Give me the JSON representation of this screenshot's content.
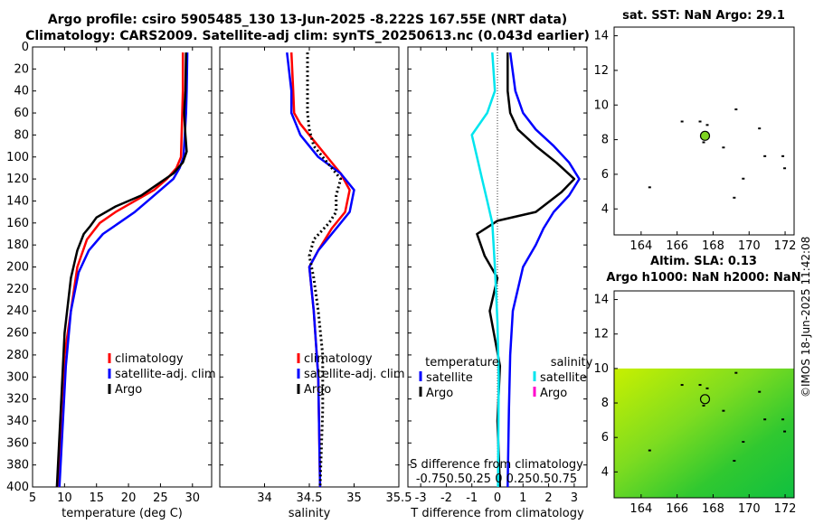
{
  "header": {
    "line1": "Argo profile: csiro 5905485_130 13-Jun-2025 -8.222S 167.55E (NRT data)",
    "line2": "Climatology: CARS2009. Satellite-adj clim: synTS_20250613.nc (0.043d earlier)"
  },
  "credit": "©IMOS 18-Jun-2025 11:42:08",
  "colors": {
    "clim": "#ff0000",
    "sat": "#0000ff",
    "argo": "#000000",
    "tsat": "#00e5ee",
    "sargo": "#ff00cc"
  },
  "chart_data": [
    {
      "type": "line",
      "id": "temperature",
      "xlabel": "temperature (deg C)",
      "xlim": [
        5,
        33
      ],
      "ylim": [
        0,
        400
      ],
      "xticks": [
        "5",
        "10",
        "15",
        "20",
        "25",
        "30"
      ],
      "xtick_values": [
        5,
        10,
        15,
        20,
        25,
        30
      ],
      "yticks": [
        "0",
        "20",
        "40",
        "60",
        "80",
        "100",
        "120",
        "140",
        "160",
        "180",
        "200",
        "220",
        "240",
        "260",
        "280",
        "300",
        "320",
        "340",
        "360",
        "380",
        "400"
      ],
      "legend": [
        "climatology",
        "satellite-adj. clim",
        "Argo"
      ],
      "series": [
        {
          "name": "climatology",
          "color": "clim",
          "x": [
            28.5,
            28.5,
            28.4,
            28.3,
            28.2,
            27.5,
            26,
            24,
            21,
            18,
            15.5,
            13.5,
            12,
            11,
            10,
            9.5,
            9
          ],
          "y": [
            5,
            40,
            60,
            80,
            100,
            110,
            120,
            130,
            140,
            150,
            160,
            175,
            200,
            240,
            280,
            330,
            400
          ]
        },
        {
          "name": "satellite-adj. clim",
          "color": "sat",
          "x": [
            29.2,
            29.1,
            29,
            28.8,
            28.6,
            28,
            27,
            25,
            23,
            21,
            18.5,
            16,
            13.8,
            12.2,
            11,
            10.2,
            9.2
          ],
          "y": [
            5,
            40,
            60,
            80,
            100,
            110,
            120,
            130,
            140,
            150,
            160,
            170,
            185,
            205,
            240,
            290,
            400
          ]
        },
        {
          "name": "Argo",
          "color": "argo",
          "x": [
            29,
            28.9,
            28.7,
            28.9,
            29.1,
            28.5,
            27,
            24.5,
            22,
            18,
            15,
            14,
            13,
            12,
            11,
            10,
            9.5,
            8.8
          ],
          "y": [
            5,
            40,
            60,
            80,
            95,
            105,
            115,
            125,
            135,
            145,
            155,
            163,
            170,
            185,
            210,
            260,
            320,
            400
          ]
        }
      ]
    },
    {
      "type": "line",
      "id": "salinity",
      "xlabel": "salinity",
      "xlim": [
        33.5,
        35.5
      ],
      "ylim": [
        0,
        400
      ],
      "xticks": [
        "34",
        "34.5",
        "35",
        "35.5"
      ],
      "xtick_values": [
        34,
        34.5,
        35,
        35.5
      ],
      "legend": [
        "climatology",
        "satellite-adj. clim",
        "Argo"
      ],
      "series": [
        {
          "name": "climatology",
          "color": "clim",
          "x": [
            34.3,
            34.32,
            34.33,
            34.4,
            34.5,
            34.65,
            34.85,
            34.95,
            34.9,
            34.75,
            34.6,
            34.5,
            34.55,
            34.6,
            34.62
          ],
          "y": [
            5,
            40,
            60,
            70,
            80,
            95,
            115,
            130,
            150,
            165,
            185,
            200,
            240,
            300,
            400
          ]
        },
        {
          "name": "satellite-adj. clim",
          "color": "sat",
          "x": [
            34.25,
            34.3,
            34.3,
            34.35,
            34.4,
            34.6,
            34.85,
            35,
            34.95,
            34.8,
            34.6,
            34.5,
            34.55,
            34.6,
            34.62
          ],
          "y": [
            5,
            40,
            60,
            70,
            80,
            100,
            115,
            130,
            150,
            165,
            185,
            200,
            240,
            300,
            400
          ]
        },
        {
          "name": "Argo",
          "color": "argo",
          "dashed": true,
          "x": [
            34.48,
            34.48,
            34.48,
            34.5,
            34.55,
            34.7,
            34.85,
            34.8,
            34.8,
            34.72,
            34.55,
            34.5,
            34.55,
            34.6,
            34.65,
            34.65,
            34.62
          ],
          "y": [
            5,
            40,
            60,
            75,
            90,
            105,
            120,
            135,
            150,
            160,
            175,
            190,
            210,
            240,
            280,
            330,
            400
          ]
        }
      ]
    },
    {
      "type": "line",
      "id": "difference",
      "xlabel": "T difference from climatology",
      "xlim": [
        -3.5,
        3.5
      ],
      "ylim": [
        0,
        400
      ],
      "xticks": [
        "-3",
        "-2",
        "-1",
        "0",
        "1",
        "2",
        "3"
      ],
      "xtick_values": [
        -3,
        -2,
        -1,
        0,
        1,
        2,
        3
      ],
      "top_label": "S difference from climatology",
      "top_ticks": "-0.750.50.25 0 0.250.50.75",
      "legend_temperature": [
        "temperature",
        "satellite",
        "Argo"
      ],
      "legend_salinity": [
        "salinity",
        "satellite",
        "Argo"
      ],
      "series": [
        {
          "name": "T satellite",
          "color": "sat",
          "x": [
            0.5,
            0.7,
            1,
            1.5,
            2.2,
            2.8,
            3.2,
            2.8,
            2.2,
            1.8,
            1.5,
            1,
            0.6,
            0.5,
            0.45,
            0.4
          ],
          "y": [
            5,
            40,
            60,
            75,
            90,
            105,
            120,
            135,
            150,
            165,
            180,
            200,
            240,
            280,
            330,
            400
          ]
        },
        {
          "name": "T Argo",
          "color": "argo",
          "x": [
            0.4,
            0.4,
            0.5,
            0.8,
            1.5,
            2.3,
            3,
            2.5,
            1.5,
            0,
            -0.8,
            -0.5,
            0,
            -0.3,
            0.1,
            0,
            0.1
          ],
          "y": [
            5,
            40,
            60,
            75,
            90,
            105,
            120,
            132,
            150,
            158,
            170,
            190,
            210,
            240,
            290,
            340,
            400
          ]
        },
        {
          "name": "S satellite",
          "color": "tsat",
          "x": [
            -0.2,
            -0.1,
            -0.4,
            -1,
            -0.8,
            -0.6,
            -0.4,
            -0.2,
            -0.1,
            0,
            0.05,
            0.02
          ],
          "y": [
            5,
            40,
            60,
            80,
            100,
            120,
            140,
            160,
            200,
            250,
            300,
            400
          ]
        }
      ]
    },
    {
      "type": "map",
      "id": "sst",
      "title": "sat. SST: NaN Argo: 29.1",
      "xlim": [
        162.5,
        172.5
      ],
      "ylim": [
        2.5,
        14.5
      ],
      "xticks": [
        "164",
        "166",
        "168",
        "170",
        "172"
      ],
      "yticks": [
        "4",
        "6",
        "8",
        "10",
        "12",
        "14"
      ],
      "argo_position": [
        167.55,
        8.222
      ]
    },
    {
      "type": "map",
      "id": "sla",
      "title_line1": "Altim. SLA: 0.13",
      "title_line2": "Argo h1000: NaN h2000: NaN",
      "xlim": [
        162.5,
        172.5
      ],
      "ylim": [
        2.5,
        14.5
      ],
      "xticks": [
        "164",
        "166",
        "168",
        "170",
        "172"
      ],
      "yticks": [
        "4",
        "6",
        "8",
        "10",
        "12",
        "14"
      ],
      "argo_position": [
        167.55,
        8.222
      ],
      "field_top_lat": 10
    }
  ]
}
